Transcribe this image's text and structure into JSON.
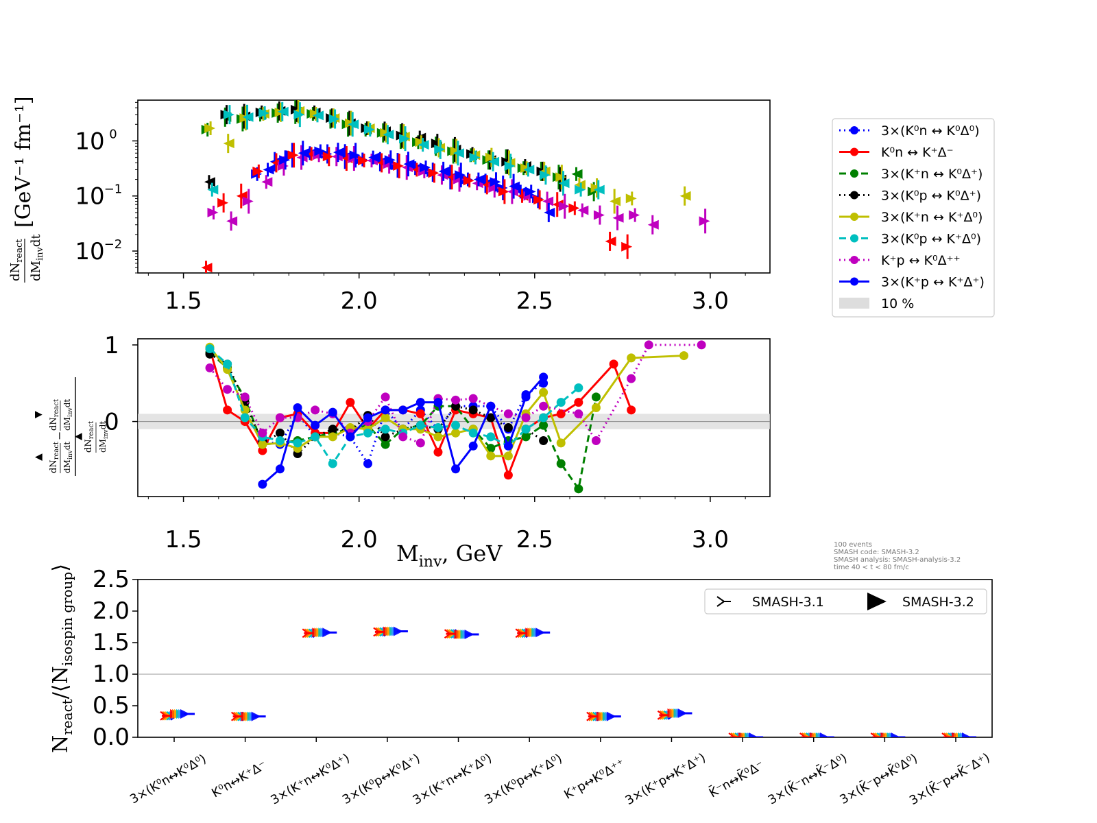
{
  "chart_data": [
    {
      "type": "scatter",
      "panel": "top",
      "yscale": "log",
      "ylabel": "dN_react / dM_inv dt [GeV^-1 fm^-1]",
      "ylim": [
        0.004,
        5.5
      ],
      "xlim": [
        1.37,
        3.17
      ],
      "x_ticks": [
        "1.5",
        "2.0",
        "2.5",
        "3.0"
      ],
      "y_ticks": [
        "10^0",
        "10^-1",
        "10^-2"
      ],
      "series": [
        {
          "name": "3×(K⁰n ↔ K⁰Δ⁰)",
          "color": "#0000ff",
          "x": [
            1.725,
            1.775,
            1.825,
            1.875,
            1.925,
            1.975,
            2.025,
            2.075,
            2.125,
            2.175,
            2.225,
            2.275,
            2.325,
            2.375,
            2.425,
            2.475,
            2.525
          ],
          "values": [
            0.25,
            0.42,
            0.55,
            0.6,
            0.58,
            0.52,
            0.46,
            0.42,
            0.36,
            0.32,
            0.27,
            0.22,
            0.2,
            0.17,
            0.14,
            0.12,
            0.09
          ]
        },
        {
          "name": "K⁰n ↔ K⁺Δ⁻",
          "color": "#ff0000",
          "x": [
            1.575,
            1.625,
            1.675,
            1.725,
            1.775,
            1.825,
            1.875,
            1.925,
            1.975,
            2.025,
            2.075,
            2.125,
            2.175,
            2.225,
            2.275,
            2.325,
            2.375,
            2.425,
            2.475,
            2.525,
            2.575,
            2.625,
            2.725,
            2.775
          ],
          "values": [
            0.005,
            0.075,
            0.1,
            0.28,
            0.4,
            0.55,
            0.58,
            0.52,
            0.48,
            0.44,
            0.4,
            0.35,
            0.3,
            0.26,
            0.22,
            0.19,
            0.16,
            0.12,
            0.1,
            0.085,
            0.07,
            0.06,
            0.015,
            0.012
          ]
        },
        {
          "name": "3×(K⁺n ↔ K⁰Δ⁺)",
          "color": "#008000",
          "x": [
            1.575,
            1.625,
            1.675,
            1.725,
            1.775,
            1.825,
            1.875,
            1.925,
            1.975,
            2.025,
            2.075,
            2.125,
            2.175,
            2.225,
            2.275,
            2.325,
            2.375,
            2.425,
            2.475,
            2.525,
            2.575,
            2.625,
            2.675
          ],
          "values": [
            1.6,
            2.7,
            2.5,
            3.0,
            3.2,
            3.4,
            3.1,
            2.5,
            2.0,
            1.6,
            1.4,
            1.2,
            0.95,
            0.8,
            0.65,
            0.55,
            0.45,
            0.42,
            0.32,
            0.28,
            0.22,
            0.25,
            0.12
          ]
        },
        {
          "name": "3×(K⁰p ↔ K⁰Δ⁺)",
          "color": "#000000",
          "x": [
            1.575,
            1.625,
            1.675,
            1.725,
            1.775,
            1.825,
            1.875,
            1.925,
            1.975,
            2.025,
            2.075,
            2.125,
            2.175,
            2.225,
            2.275,
            2.325,
            2.375,
            2.425,
            2.475,
            2.525,
            2.575
          ],
          "values": [
            0.18,
            3.0,
            2.8,
            3.3,
            3.5,
            3.7,
            3.3,
            2.6,
            2.1,
            1.7,
            1.5,
            1.25,
            1.15,
            0.9,
            0.7,
            0.58,
            0.45,
            0.42,
            0.35,
            0.28,
            0.2
          ]
        },
        {
          "name": "3×(K⁺n ↔ K⁺Δ⁰)",
          "color": "#bfbf00",
          "x": [
            1.575,
            1.625,
            1.675,
            1.725,
            1.775,
            1.825,
            1.875,
            1.925,
            1.975,
            2.025,
            2.075,
            2.125,
            2.175,
            2.225,
            2.275,
            2.325,
            2.375,
            2.425,
            2.475,
            2.525,
            2.575,
            2.625,
            2.675,
            2.725,
            2.775,
            2.925
          ],
          "values": [
            1.7,
            0.9,
            2.6,
            3.1,
            3.3,
            3.5,
            3.1,
            2.6,
            2.1,
            1.7,
            1.4,
            1.2,
            0.95,
            0.75,
            0.65,
            0.55,
            0.5,
            0.4,
            0.32,
            0.28,
            0.22,
            0.16,
            0.14,
            0.08,
            0.09,
            0.1
          ]
        },
        {
          "name": "3×(K⁰p ↔ K⁺Δ⁰)",
          "color": "#00bfbf",
          "x": [
            1.575,
            1.625,
            1.675,
            1.725,
            1.775,
            1.825,
            1.875,
            1.925,
            1.975,
            2.025,
            2.075,
            2.125,
            2.175,
            2.225,
            2.275,
            2.325,
            2.375,
            2.425,
            2.475,
            2.525,
            2.575,
            2.625,
            2.675
          ],
          "values": [
            0.13,
            3.0,
            2.7,
            3.2,
            3.4,
            3.0,
            2.9,
            2.5,
            2.0,
            1.6,
            1.3,
            1.1,
            0.85,
            0.7,
            0.6,
            0.5,
            0.42,
            0.35,
            0.3,
            0.24,
            0.17,
            0.13,
            0.13
          ]
        },
        {
          "name": "K⁺p ↔ K⁰Δ⁺⁺",
          "color": "#bf00bf",
          "x": [
            1.575,
            1.625,
            1.675,
            1.725,
            1.775,
            1.825,
            1.875,
            1.925,
            1.975,
            2.025,
            2.075,
            2.125,
            2.175,
            2.225,
            2.275,
            2.325,
            2.375,
            2.425,
            2.475,
            2.525,
            2.575,
            2.625,
            2.675,
            2.725,
            2.775,
            2.825,
            2.975
          ],
          "values": [
            0.05,
            0.035,
            0.08,
            0.18,
            0.35,
            0.5,
            0.55,
            0.52,
            0.48,
            0.44,
            0.38,
            0.33,
            0.28,
            0.24,
            0.2,
            0.17,
            0.14,
            0.12,
            0.1,
            0.08,
            0.065,
            0.055,
            0.045,
            0.04,
            0.045,
            0.03,
            0.035
          ]
        },
        {
          "name": "3×(K⁺p ↔ K⁺Δ⁺)",
          "color": "#0000ff",
          "x": [
            1.725,
            1.775,
            1.825,
            1.875,
            1.925,
            1.975,
            2.025,
            2.075,
            2.125,
            2.175,
            2.225,
            2.275,
            2.325,
            2.375,
            2.425,
            2.475,
            2.525
          ],
          "values": [
            0.3,
            0.45,
            0.6,
            0.65,
            0.62,
            0.55,
            0.5,
            0.45,
            0.38,
            0.33,
            0.28,
            0.24,
            0.2,
            0.18,
            0.15,
            0.12,
            0.05
          ]
        }
      ]
    },
    {
      "type": "line",
      "panel": "middle",
      "ylabel": "(dN▲ - dN▼) / dN▲",
      "ylim": [
        -0.98,
        1.08
      ],
      "xlim": [
        1.37,
        3.17
      ],
      "xlabel": "M_inv, GeV",
      "band": [
        -0.1,
        0.1
      ],
      "x_ticks": [
        "1.5",
        "2.0",
        "2.5",
        "3.0"
      ],
      "y_ticks": [
        "1",
        "0"
      ],
      "series": [
        {
          "name": "3×(K⁰n ↔ K⁰Δ⁰)",
          "color": "#0000ff",
          "dash": "dotted",
          "x": [
            1.725,
            1.775,
            1.825,
            1.875,
            1.925,
            1.975,
            2.025,
            2.075,
            2.125,
            2.175,
            2.225,
            2.275,
            2.325,
            2.375,
            2.425,
            2.475,
            2.525
          ],
          "values": [
            -0.25,
            -0.3,
            0.1,
            -0.2,
            -0.15,
            -0.2,
            -0.55,
            0.15,
            -0.1,
            0.15,
            -0.1,
            0.2,
            0.2,
            0.2,
            -0.1,
            0.35,
            0.5
          ]
        },
        {
          "name": "K⁰n ↔ K⁺Δ⁻",
          "color": "#ff0000",
          "dash": "solid",
          "x": [
            1.575,
            1.625,
            1.675,
            1.725,
            1.775,
            1.825,
            1.875,
            1.925,
            1.975,
            2.025,
            2.075,
            2.125,
            2.175,
            2.225,
            2.275,
            2.325,
            2.375,
            2.425,
            2.475,
            2.525,
            2.575,
            2.625,
            2.725,
            2.775
          ],
          "values": [
            0.95,
            0.15,
            0.0,
            -0.38,
            0.05,
            0.1,
            -0.15,
            -0.15,
            0.25,
            -0.1,
            0.15,
            0.15,
            0.1,
            -0.4,
            0.15,
            0.1,
            0.05,
            -0.7,
            -0.1,
            0.05,
            0.1,
            0.25,
            0.75,
            0.15
          ]
        },
        {
          "name": "3×(K⁺n ↔ K⁰Δ⁺)",
          "color": "#008000",
          "dash": "dashed",
          "x": [
            1.575,
            1.625,
            1.675,
            1.725,
            1.775,
            1.825,
            1.875,
            1.925,
            1.975,
            2.025,
            2.075,
            2.125,
            2.175,
            2.225,
            2.275,
            2.325,
            2.375,
            2.425,
            2.475,
            2.525,
            2.575,
            2.625,
            2.675
          ],
          "values": [
            0.9,
            0.7,
            0.3,
            -0.3,
            -0.28,
            -0.25,
            -0.2,
            -0.15,
            -0.1,
            -0.05,
            -0.3,
            -0.1,
            -0.05,
            0.2,
            0.2,
            -0.1,
            -0.35,
            -0.25,
            -0.2,
            -0.05,
            -0.55,
            -0.88,
            0.32
          ]
        },
        {
          "name": "3×(K⁰p ↔ K⁰Δ⁺)",
          "color": "#000000",
          "dash": "dotted",
          "x": [
            1.575,
            1.625,
            1.675,
            1.725,
            1.775,
            1.825,
            1.875,
            1.925,
            1.975,
            2.025,
            2.075,
            2.125,
            2.175,
            2.225,
            2.275,
            2.325,
            2.375,
            2.425,
            2.475,
            2.525
          ],
          "values": [
            0.88,
            0.75,
            0.25,
            -0.28,
            -0.15,
            -0.42,
            -0.2,
            -0.1,
            -0.12,
            0.08,
            -0.2,
            -0.1,
            -0.05,
            -0.1,
            0.2,
            0.15,
            0.05,
            -0.08,
            -0.1,
            -0.25
          ]
        },
        {
          "name": "3×(K⁺n ↔ K⁺Δ⁰)",
          "color": "#bfbf00",
          "dash": "solid",
          "x": [
            1.575,
            1.625,
            1.675,
            1.725,
            1.775,
            1.825,
            1.875,
            1.925,
            1.975,
            2.025,
            2.075,
            2.125,
            2.175,
            2.225,
            2.275,
            2.325,
            2.375,
            2.425,
            2.475,
            2.525,
            2.575,
            2.675,
            2.775,
            2.925
          ],
          "values": [
            0.97,
            0.68,
            0.15,
            -0.3,
            -0.28,
            -0.35,
            -0.2,
            -0.2,
            -0.08,
            -0.1,
            0.05,
            -0.1,
            -0.1,
            -0.2,
            -0.15,
            -0.1,
            -0.45,
            -0.45,
            0.1,
            0.38,
            -0.28,
            0.18,
            0.83,
            0.86
          ]
        },
        {
          "name": "3×(K⁰p ↔ K⁺Δ⁰)",
          "color": "#00bfbf",
          "dash": "dashed",
          "x": [
            1.575,
            1.625,
            1.675,
            1.725,
            1.775,
            1.825,
            1.875,
            1.925,
            1.975,
            2.025,
            2.075,
            2.125,
            2.175,
            2.225,
            2.275,
            2.325,
            2.375,
            2.425,
            2.475,
            2.525,
            2.575,
            2.625
          ],
          "values": [
            0.95,
            0.75,
            0.05,
            -0.2,
            -0.25,
            -0.28,
            -0.2,
            -0.55,
            -0.2,
            -0.15,
            -0.1,
            -0.15,
            -0.05,
            -0.08,
            -0.05,
            -0.15,
            -0.2,
            -0.32,
            -0.1,
            0.05,
            0.25,
            0.44
          ]
        },
        {
          "name": "K⁺p ↔ K⁰Δ⁺⁺",
          "color": "#bf00bf",
          "dash": "dotted",
          "x": [
            1.575,
            1.625,
            1.675,
            1.725,
            1.775,
            1.825,
            1.875,
            1.925,
            1.975,
            2.025,
            2.075,
            2.125,
            2.175,
            2.225,
            2.275,
            2.325,
            2.375,
            2.425,
            2.475,
            2.525,
            2.625,
            2.675,
            2.775,
            2.825,
            2.975
          ],
          "values": [
            0.7,
            0.42,
            0.32,
            -0.15,
            0.05,
            0.05,
            0.15,
            0.1,
            -0.15,
            0.0,
            0.32,
            -0.2,
            -0.28,
            0.3,
            0.28,
            0.3,
            0.2,
            0.1,
            0.05,
            0.2,
            0.1,
            -0.25,
            0.56,
            1.0,
            1.0
          ]
        },
        {
          "name": "3×(K⁺p ↔ K⁺Δ⁺)",
          "color": "#0000ff",
          "dash": "solid",
          "x": [
            1.725,
            1.775,
            1.825,
            1.875,
            1.925,
            1.975,
            2.025,
            2.075,
            2.125,
            2.175,
            2.225,
            2.275,
            2.325,
            2.375,
            2.425,
            2.475,
            2.525
          ],
          "values": [
            -0.82,
            -0.62,
            0.18,
            -0.05,
            0.12,
            -0.2,
            0.05,
            0.15,
            0.15,
            0.25,
            0.25,
            -0.62,
            -0.32,
            0.2,
            -0.32,
            0.32,
            0.58
          ]
        }
      ]
    },
    {
      "type": "scatter",
      "panel": "bottom",
      "ylabel": "N_react / ⟨N_isospin group⟩",
      "ylim": [
        0.0,
        2.5
      ],
      "y_ticks": [
        "0.0",
        "0.5",
        "1.0",
        "1.5",
        "2.0",
        "2.5"
      ],
      "hline": 1.0,
      "categories": [
        "3×(K⁰n↔K⁰Δ⁰)",
        "K⁰n↔K⁺Δ⁻",
        "3×(K⁺n↔K⁰Δ⁺)",
        "3×(K⁰p↔K⁰Δ⁺)",
        "3×(K⁺n↔K⁺Δ⁰)",
        "3×(K⁰p↔K⁺Δ⁰)",
        "K⁺p↔K⁰Δ⁺⁺",
        "3×(K⁺p↔K⁺Δ⁺)",
        "K̄⁻n↔K̄⁰Δ⁻",
        "3×(K̄⁻n↔K̄⁻Δ⁰)",
        "3×(K̄⁻p↔K̄⁰Δ⁰)",
        "3×(K̄⁻p↔K̄⁻Δ⁺)"
      ],
      "series": [
        {
          "name": "SMASH-3.1",
          "values": [
            0.34,
            0.33,
            1.65,
            1.67,
            1.64,
            1.65,
            0.33,
            0.35,
            0.0,
            0.0,
            0.0,
            0.0
          ]
        },
        {
          "name": "SMASH-3.2",
          "values": [
            0.37,
            0.33,
            1.66,
            1.68,
            1.63,
            1.66,
            0.33,
            0.38,
            0.0,
            0.0,
            0.0,
            0.0
          ]
        }
      ]
    }
  ],
  "legend": {
    "entries": [
      {
        "label": "3×(K⁰n ↔ K⁰Δ⁰)",
        "color": "#0000ff",
        "dash": "dotted"
      },
      {
        "label": "K⁰n ↔ K⁺Δ⁻",
        "color": "#ff0000",
        "dash": "solid"
      },
      {
        "label": "3×(K⁺n ↔ K⁰Δ⁺)",
        "color": "#008000",
        "dash": "dashed"
      },
      {
        "label": "3×(K⁰p ↔ K⁰Δ⁺)",
        "color": "#000000",
        "dash": "dotted"
      },
      {
        "label": "3×(K⁺n ↔ K⁺Δ⁰)",
        "color": "#bfbf00",
        "dash": "solid"
      },
      {
        "label": "3×(K⁰p ↔ K⁺Δ⁰)",
        "color": "#00bfbf",
        "dash": "dashed"
      },
      {
        "label": "K⁺p ↔ K⁰Δ⁺⁺",
        "color": "#bf00bf",
        "dash": "dotted"
      },
      {
        "label": "3×(K⁺p ↔ K⁺Δ⁺)",
        "color": "#0000ff",
        "dash": "solid"
      },
      {
        "label": "10 %",
        "color": "#dddddd",
        "dash": "band"
      }
    ],
    "placement": "right-outside"
  },
  "version_legend": [
    "SMASH-3.1",
    "SMASH-3.2"
  ],
  "meta_text": [
    "100 events",
    "SMASH code:      SMASH-3.2",
    "SMASH analysis: SMASH-analysis-3.2",
    "time 40 < t < 80 fm/c"
  ],
  "labels": {
    "top_unit": "[GeV⁻¹ fm⁻¹]",
    "xlabel_main": "M",
    "xlabel_sub": "inv",
    "xlabel_rest": ", GeV",
    "bottom_y_main": "N",
    "bottom_y_sub1": "react",
    "bottom_y_mid": "/⟨N",
    "bottom_y_sub2": "isospin group",
    "bottom_y_end": "⟩"
  }
}
